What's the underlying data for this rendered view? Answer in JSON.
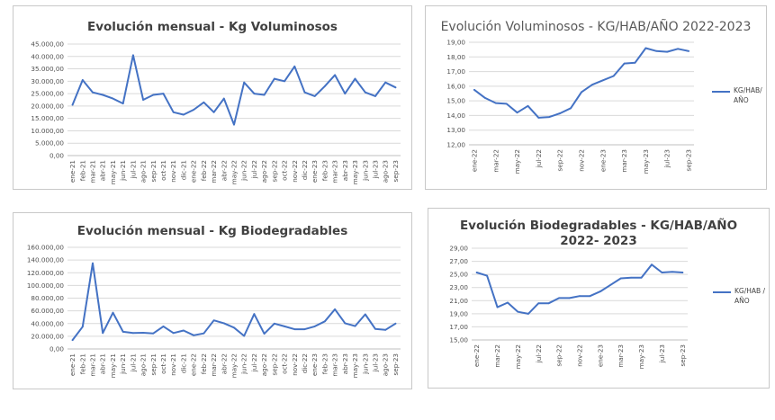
{
  "colors": {
    "series": "#4472c4",
    "grid": "#d9d9d9",
    "axis": "#bfbfbf"
  },
  "chart_data": [
    {
      "type": "line",
      "title": "Evolución mensual - Kg Voluminosos",
      "legend": "",
      "grid": true,
      "ylim": [
        0,
        45000
      ],
      "yticks": [
        "0,00",
        "5.000,00",
        "10.000,00",
        "15.000,00",
        "20.000,00",
        "25.000,00",
        "30.000,00",
        "35.000,00",
        "40.000,00",
        "45.000,00"
      ],
      "x": [
        "ene-21",
        "feb-21",
        "mar-21",
        "abr-21",
        "may-21",
        "jun-21",
        "jul-21",
        "ago-21",
        "sep-21",
        "oct-21",
        "nov-21",
        "dic-21",
        "ene-22",
        "feb-22",
        "mar-22",
        "abr-22",
        "may-22",
        "jun-22",
        "jul-22",
        "ago-22",
        "sep-22",
        "oct-22",
        "nov-22",
        "dic-22",
        "ene-23",
        "feb-23",
        "mar-23",
        "abr-23",
        "may-23",
        "jun-23",
        "jul-23",
        "ago-23",
        "sep-23"
      ],
      "xtick_labels": [
        "ene-21",
        "feb-21",
        "mar-21",
        "abr-21",
        "may-21",
        "jun-21",
        "jul-21",
        "ago-21",
        "sep-21",
        "oct-21",
        "nov-21",
        "dic-21",
        "ene-22",
        "feb-22",
        "mar-22",
        "abr-22",
        "may-22",
        "jun-22",
        "jul-22",
        "ago-22",
        "sep-22",
        "oct-22",
        "nov-22",
        "dic-22",
        "ene-23",
        "feb-23",
        "mar-23",
        "abr-23",
        "may-23",
        "jun-23",
        "jul-23",
        "ago-23",
        "sep-23"
      ],
      "series": [
        {
          "values": [
            20500,
            30500,
            25500,
            24500,
            23000,
            21000,
            40500,
            22500,
            24500,
            25000,
            17500,
            16500,
            18500,
            21500,
            17500,
            23000,
            12500,
            29500,
            25000,
            24500,
            31000,
            30000,
            36000,
            25500,
            24000,
            28000,
            32500,
            25000,
            31000,
            25500,
            24000,
            29500,
            27500
          ]
        }
      ]
    },
    {
      "type": "line",
      "title": "Evolución Voluminosos - KG/HAB/AÑO 2022-2023",
      "legend": "KG/HAB/ AÑO",
      "grid": true,
      "ylim": [
        12,
        19
      ],
      "yticks": [
        "12,00",
        "13,00",
        "14,00",
        "15,00",
        "16,00",
        "17,00",
        "18,00",
        "19,00"
      ],
      "x": [
        "ene-22",
        "feb-22",
        "mar-22",
        "abr-22",
        "may-22",
        "jun-22",
        "jul-22",
        "ago-22",
        "sep-22",
        "oct-22",
        "nov-22",
        "dic-22",
        "ene-23",
        "feb-23",
        "mar-23",
        "abr-23",
        "may-23",
        "jun-23",
        "jul-23",
        "ago-23",
        "sep-23"
      ],
      "xtick_labels": [
        "ene-22",
        "",
        "mar-22",
        "",
        "may-22",
        "",
        "jul-22",
        "",
        "sep-22",
        "",
        "nov-22",
        "",
        "ene-23",
        "",
        "mar-23",
        "",
        "may-23",
        "",
        "jul-23",
        "",
        "sep-23"
      ],
      "series": [
        {
          "values": [
            15.75,
            15.2,
            14.85,
            14.8,
            14.2,
            14.65,
            13.85,
            13.9,
            14.15,
            14.5,
            15.6,
            16.1,
            16.4,
            16.7,
            17.55,
            17.6,
            18.6,
            18.4,
            18.35,
            18.55,
            18.4
          ]
        }
      ]
    },
    {
      "type": "line",
      "title": "Evolución mensual - Kg Biodegradables",
      "legend": "",
      "grid": true,
      "ylim": [
        0,
        160000
      ],
      "yticks": [
        "0,00",
        "20.000,00",
        "40.000,00",
        "60.000,00",
        "80.000,00",
        "100.000,00",
        "120.000,00",
        "140.000,00",
        "160.000,00"
      ],
      "x": [
        "ene-21",
        "feb-21",
        "mar-21",
        "abr-21",
        "may-21",
        "jun-21",
        "jul-21",
        "ago-21",
        "sep-21",
        "oct-21",
        "nov-21",
        "dic-21",
        "ene-22",
        "feb-22",
        "mar-22",
        "abr-22",
        "may-22",
        "jun-22",
        "jul-22",
        "ago-22",
        "sep-22",
        "oct-22",
        "nov-22",
        "dic-22",
        "ene-23",
        "feb-23",
        "mar-23",
        "abr-23",
        "may-23",
        "jun-23",
        "jul-23",
        "ago-23",
        "sep-23"
      ],
      "xtick_labels": [
        "ene-21",
        "feb-21",
        "mar-21",
        "abr-21",
        "may-21",
        "jun-21",
        "jul-21",
        "ago-21",
        "sep-21",
        "oct-21",
        "nov-21",
        "dic-21",
        "ene-22",
        "feb-22",
        "mar-22",
        "abr-22",
        "may-22",
        "jun-22",
        "jul-22",
        "ago-22",
        "sep-22",
        "oct-22",
        "nov-22",
        "dic-22",
        "ene-23",
        "feb-23",
        "mar-23",
        "abr-23",
        "may-23",
        "jun-23",
        "jul-23",
        "ago-23",
        "sep-23"
      ],
      "series": [
        {
          "values": [
            14000,
            35000,
            135000,
            25000,
            57000,
            27000,
            25000,
            25500,
            24500,
            35500,
            25000,
            29000,
            21500,
            24500,
            45000,
            40500,
            33500,
            20500,
            55000,
            24000,
            40000,
            35500,
            31000,
            31000,
            35500,
            43500,
            62500,
            40500,
            36000,
            54500,
            31500,
            30000,
            40000
          ]
        }
      ]
    },
    {
      "type": "line",
      "title": "Evolución Biodegradables - KG/HAB/AÑO 2022- 2023",
      "legend": "KG/HAB /AÑO",
      "grid": true,
      "ylim": [
        15,
        29
      ],
      "yticks": [
        "15,00",
        "17,00",
        "19,00",
        "21,00",
        "23,00",
        "25,00",
        "27,00",
        "29,00"
      ],
      "x": [
        "ene-22",
        "feb-22",
        "mar-22",
        "abr-22",
        "may-22",
        "jun-22",
        "jul-22",
        "ago-22",
        "sep-22",
        "oct-22",
        "nov-22",
        "dic-22",
        "ene-23",
        "feb-23",
        "mar-23",
        "abr-23",
        "may-23",
        "jun-23",
        "jul-23",
        "ago-23",
        "sep-23"
      ],
      "xtick_labels": [
        "ene-22",
        "",
        "mar-22",
        "",
        "may-22",
        "",
        "jul-22",
        "",
        "sep-22",
        "",
        "nov-22",
        "",
        "ene-23",
        "",
        "mar-23",
        "",
        "may-23",
        "",
        "jul-23",
        "",
        "sep-23"
      ],
      "series": [
        {
          "values": [
            25.3,
            24.8,
            20.0,
            20.7,
            19.3,
            19.0,
            20.6,
            20.6,
            21.4,
            21.4,
            21.7,
            21.7,
            22.4,
            23.4,
            24.4,
            24.5,
            24.5,
            26.5,
            25.3,
            25.4,
            25.3
          ]
        }
      ]
    }
  ]
}
